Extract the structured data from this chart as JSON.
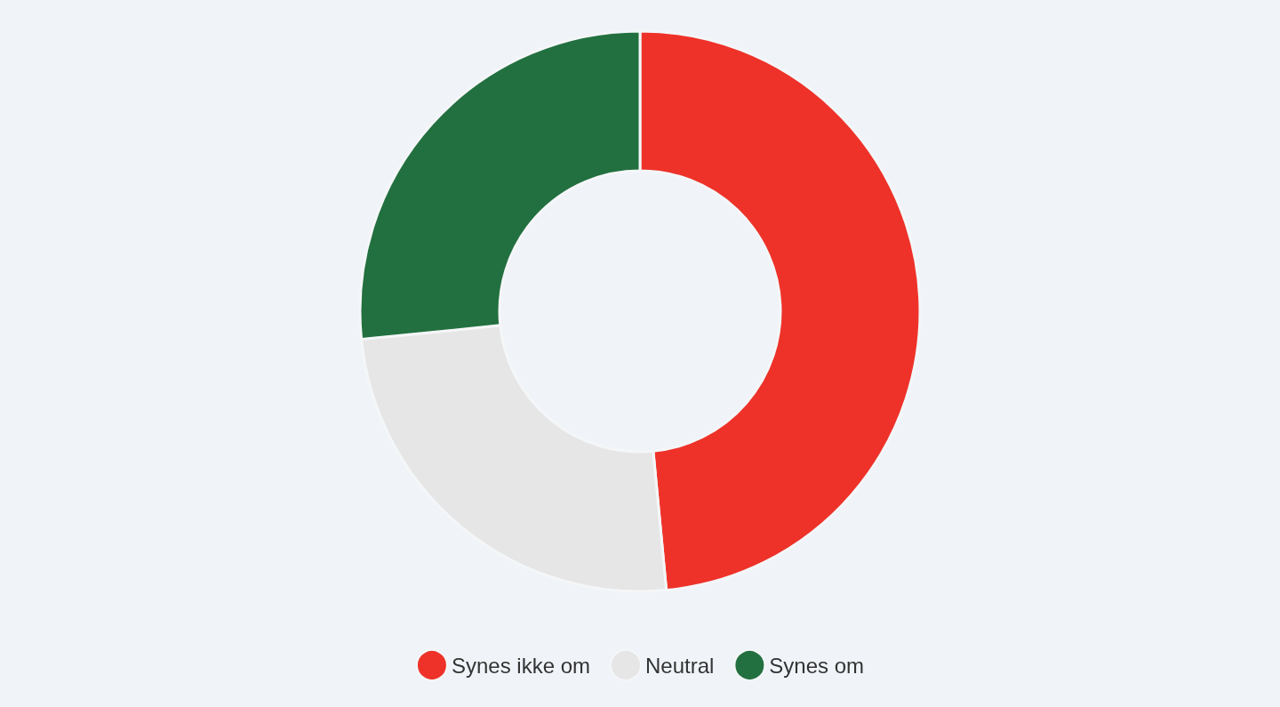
{
  "chart_data": {
    "type": "donut",
    "categories": [
      "Synes ikke om",
      "Neutral",
      "Synes om"
    ],
    "values": [
      48.5,
      24.9,
      26.6
    ],
    "colors": [
      "#ee3229",
      "#e6e6e6",
      "#22703f"
    ],
    "legend": "bottom"
  }
}
